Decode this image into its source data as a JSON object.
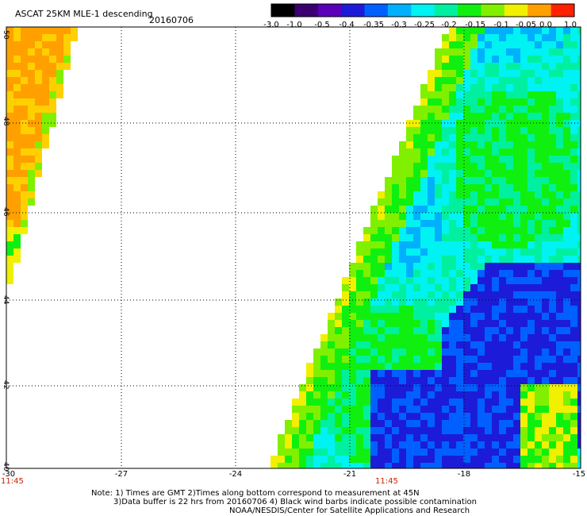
{
  "header": {
    "title": "ASCAT 25KM MLE-1 descending",
    "date": "20160706"
  },
  "colorbar": {
    "ticks": [
      "-3.0",
      "-1.0",
      "-0.5",
      "-0.4",
      "-0.35",
      "-0.3",
      "-0.25",
      "-0.2",
      "-0.15",
      "-0.1",
      "-0.05",
      "0.0",
      "1.0"
    ],
    "colors": [
      "#000000",
      "#3a0070",
      "#5a00b8",
      "#1c1cd8",
      "#0060ff",
      "#00b0ff",
      "#00f2f2",
      "#00f0a0",
      "#10f010",
      "#80f000",
      "#f0f000",
      "#ffa000",
      "#ff2000"
    ]
  },
  "map": {
    "lat_labels": [
      "50",
      "48",
      "46",
      "44",
      "42",
      "40"
    ],
    "lon_labels": [
      "-30",
      "-27",
      "-24",
      "-21",
      "-18",
      "-15"
    ],
    "time_labels": [
      "11:45",
      "11:45"
    ],
    "time_color": "#cc2200"
  },
  "notes": {
    "line1": "Note: 1) Times are GMT 2)Times along bottom correspond to measurement at 45N",
    "line2": "3)Data buffer is 22 hrs from 20160706 4) Black wind barbs indicate possible contamination",
    "line3": "NOAA/NESDIS/Center for Satellite Applications and Research"
  }
}
